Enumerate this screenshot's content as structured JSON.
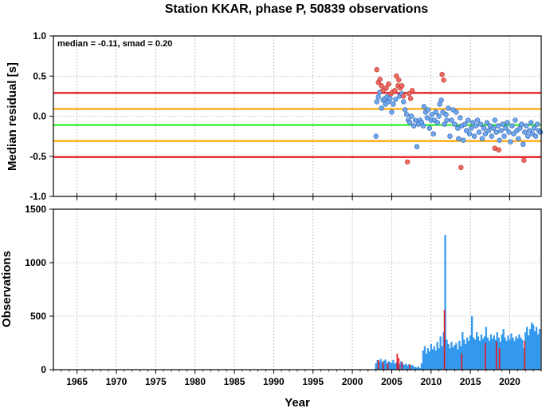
{
  "chart_data": [
    {
      "type": "scatter",
      "title": "Station KKAR, phase P, 50839 observations",
      "ylabel": "Median residual [s]",
      "annotation": "median = -0.11, smad = 0.20",
      "xlim": [
        1962,
        2024
      ],
      "ylim": [
        -1.0,
        1.0
      ],
      "yticks": [
        "-1.0",
        "-0.5",
        "0.0",
        "0.5",
        "1.0"
      ],
      "grid": true,
      "reference_lines": [
        {
          "value": 0.29,
          "color": "#e8141e"
        },
        {
          "value": 0.09,
          "color": "#ffa500"
        },
        {
          "value": -0.11,
          "color": "#22ee22"
        },
        {
          "value": -0.31,
          "color": "#ffa500"
        },
        {
          "value": -0.51,
          "color": "#e8141e"
        }
      ],
      "series": [
        {
          "color": "#6fa8f0",
          "points": [
            [
              2003.0,
              -0.25
            ],
            [
              2003.1,
              0.18
            ],
            [
              2003.3,
              0.24
            ],
            [
              2003.5,
              0.3
            ],
            [
              2003.7,
              0.1
            ],
            [
              2003.9,
              0.2
            ],
            [
              2004.1,
              0.22
            ],
            [
              2004.2,
              0.15
            ],
            [
              2004.4,
              0.24
            ],
            [
              2004.6,
              0.18
            ],
            [
              2004.8,
              0.22
            ],
            [
              2005.0,
              0.05
            ],
            [
              2005.2,
              0.15
            ],
            [
              2005.5,
              0.21
            ],
            [
              2006.0,
              0.25
            ],
            [
              2006.3,
              0.28
            ],
            [
              2006.5,
              0.18
            ],
            [
              2006.7,
              0.08
            ],
            [
              2006.9,
              0.02
            ],
            [
              2007.1,
              -0.05
            ],
            [
              2007.3,
              -0.08
            ],
            [
              2007.5,
              0.0
            ],
            [
              2007.8,
              -0.12
            ],
            [
              2008.0,
              -0.05
            ],
            [
              2008.2,
              -0.38
            ],
            [
              2008.4,
              -0.1
            ],
            [
              2008.6,
              -0.05
            ],
            [
              2008.8,
              -0.08
            ],
            [
              2009.0,
              -0.12
            ],
            [
              2009.1,
              0.12
            ],
            [
              2009.3,
              0.05
            ],
            [
              2009.5,
              -0.02
            ],
            [
              2009.6,
              0.08
            ],
            [
              2009.8,
              -0.15
            ],
            [
              2010.0,
              -0.05
            ],
            [
              2010.1,
              0.02
            ],
            [
              2010.3,
              -0.22
            ],
            [
              2010.4,
              -0.05
            ],
            [
              2010.6,
              0.05
            ],
            [
              2010.8,
              -0.08
            ],
            [
              2011.0,
              0.0
            ],
            [
              2011.1,
              0.15
            ],
            [
              2011.3,
              0.2
            ],
            [
              2011.5,
              0.05
            ],
            [
              2011.7,
              -0.1
            ],
            [
              2011.9,
              0.02
            ],
            [
              2012.0,
              -0.05
            ],
            [
              2012.2,
              0.1
            ],
            [
              2012.4,
              -0.25
            ],
            [
              2012.6,
              -0.05
            ],
            [
              2012.8,
              0.08
            ],
            [
              2013.0,
              -0.1
            ],
            [
              2013.2,
              0.05
            ],
            [
              2013.4,
              -0.15
            ],
            [
              2013.5,
              -0.28
            ],
            [
              2013.7,
              -0.02
            ],
            [
              2013.9,
              -0.12
            ],
            [
              2014.1,
              -0.3
            ],
            [
              2014.3,
              -0.1
            ],
            [
              2014.5,
              -0.18
            ],
            [
              2014.7,
              -0.05
            ],
            [
              2014.9,
              -0.22
            ],
            [
              2015.1,
              -0.15
            ],
            [
              2015.3,
              -0.08
            ],
            [
              2015.5,
              -0.25
            ],
            [
              2015.7,
              -0.12
            ],
            [
              2015.9,
              -0.05
            ],
            [
              2016.1,
              -0.2
            ],
            [
              2016.3,
              -0.1
            ],
            [
              2016.5,
              -0.28
            ],
            [
              2016.7,
              -0.15
            ],
            [
              2016.9,
              -0.22
            ],
            [
              2017.1,
              -0.08
            ],
            [
              2017.3,
              -0.18
            ],
            [
              2017.5,
              -0.12
            ],
            [
              2017.7,
              -0.25
            ],
            [
              2017.9,
              -0.15
            ],
            [
              2018.1,
              -0.05
            ],
            [
              2018.3,
              -0.2
            ],
            [
              2018.5,
              -0.12
            ],
            [
              2018.7,
              -0.3
            ],
            [
              2018.9,
              -0.18
            ],
            [
              2019.1,
              -0.1
            ],
            [
              2019.3,
              -0.25
            ],
            [
              2019.5,
              -0.15
            ],
            [
              2019.7,
              -0.08
            ],
            [
              2019.9,
              -0.2
            ],
            [
              2020.1,
              -0.32
            ],
            [
              2020.3,
              -0.12
            ],
            [
              2020.5,
              -0.22
            ],
            [
              2020.7,
              -0.05
            ],
            [
              2020.9,
              -0.18
            ],
            [
              2021.1,
              -0.28
            ],
            [
              2021.3,
              -0.15
            ],
            [
              2021.5,
              -0.1
            ],
            [
              2021.7,
              -0.35
            ],
            [
              2021.9,
              -0.2
            ],
            [
              2022.1,
              -0.12
            ],
            [
              2022.3,
              -0.25
            ],
            [
              2022.5,
              -0.18
            ],
            [
              2022.7,
              -0.08
            ],
            [
              2022.9,
              -0.22
            ],
            [
              2023.1,
              -0.15
            ],
            [
              2023.3,
              -0.25
            ],
            [
              2023.5,
              -0.1
            ],
            [
              2023.7,
              -0.18
            ],
            [
              2023.9,
              -0.2
            ]
          ]
        },
        {
          "color": "#f06a60",
          "points": [
            [
              2003.1,
              0.58
            ],
            [
              2003.3,
              0.42
            ],
            [
              2003.5,
              0.46
            ],
            [
              2003.7,
              0.38
            ],
            [
              2003.9,
              0.32
            ],
            [
              2004.3,
              0.35
            ],
            [
              2004.6,
              0.4
            ],
            [
              2004.9,
              0.28
            ],
            [
              2005.1,
              0.3
            ],
            [
              2005.4,
              0.32
            ],
            [
              2005.6,
              0.5
            ],
            [
              2005.8,
              0.38
            ],
            [
              2005.9,
              0.45
            ],
            [
              2006.1,
              0.35
            ],
            [
              2006.3,
              0.38
            ],
            [
              2006.5,
              0.25
            ],
            [
              2007.0,
              -0.57
            ],
            [
              2007.2,
              0.28
            ],
            [
              2007.4,
              0.22
            ],
            [
              2007.6,
              0.32
            ],
            [
              2011.4,
              0.52
            ],
            [
              2011.6,
              0.45
            ],
            [
              2013.8,
              -0.64
            ],
            [
              2018.1,
              -0.4
            ],
            [
              2018.6,
              -0.42
            ],
            [
              2021.8,
              -0.55
            ]
          ]
        }
      ]
    },
    {
      "type": "bar",
      "xlabel": "Year",
      "ylabel": "Observations",
      "xlim": [
        1962,
        2024
      ],
      "ylim": [
        0,
        1500
      ],
      "xticks": [
        "1965",
        "1970",
        "1975",
        "1980",
        "1985",
        "1990",
        "1995",
        "2000",
        "2005",
        "2010",
        "2015",
        "2020"
      ],
      "yticks": [
        "0",
        "500",
        "1000",
        "1500"
      ],
      "grid": true,
      "series": [
        {
          "color": "#3399ee",
          "bars": [
            [
              2003.0,
              60
            ],
            [
              2003.2,
              90
            ],
            [
              2003.4,
              75
            ],
            [
              2003.6,
              100
            ],
            [
              2003.8,
              70
            ],
            [
              2004.0,
              85
            ],
            [
              2004.2,
              95
            ],
            [
              2004.4,
              60
            ],
            [
              2004.6,
              80
            ],
            [
              2004.8,
              70
            ],
            [
              2005.0,
              65
            ],
            [
              2005.2,
              90
            ],
            [
              2005.4,
              55
            ],
            [
              2005.6,
              70
            ],
            [
              2005.8,
              60
            ],
            [
              2006.0,
              50
            ],
            [
              2006.2,
              80
            ],
            [
              2006.4,
              60
            ],
            [
              2006.6,
              45
            ],
            [
              2006.8,
              55
            ],
            [
              2007.0,
              40
            ],
            [
              2007.2,
              50
            ],
            [
              2007.4,
              35
            ],
            [
              2007.6,
              45
            ],
            [
              2007.8,
              30
            ],
            [
              2008.0,
              25
            ],
            [
              2008.2,
              20
            ],
            [
              2008.4,
              30
            ],
            [
              2008.6,
              15
            ],
            [
              2008.8,
              60
            ],
            [
              2009.0,
              180
            ],
            [
              2009.2,
              220
            ],
            [
              2009.4,
              150
            ],
            [
              2009.6,
              200
            ],
            [
              2009.8,
              170
            ],
            [
              2010.0,
              240
            ],
            [
              2010.2,
              190
            ],
            [
              2010.4,
              220
            ],
            [
              2010.6,
              180
            ],
            [
              2010.8,
              260
            ],
            [
              2011.0,
              200
            ],
            [
              2011.2,
              310
            ],
            [
              2011.4,
              220
            ],
            [
              2011.6,
              350
            ],
            [
              2011.8,
              1260
            ],
            [
              2012.0,
              280
            ],
            [
              2012.2,
              240
            ],
            [
              2012.4,
              200
            ],
            [
              2012.6,
              260
            ],
            [
              2012.8,
              210
            ],
            [
              2013.0,
              230
            ],
            [
              2013.2,
              250
            ],
            [
              2013.4,
              190
            ],
            [
              2013.6,
              270
            ],
            [
              2013.8,
              220
            ],
            [
              2014.0,
              350
            ],
            [
              2014.2,
              280
            ],
            [
              2014.4,
              240
            ],
            [
              2014.6,
              300
            ],
            [
              2014.8,
              270
            ],
            [
              2015.0,
              320
            ],
            [
              2015.2,
              500
            ],
            [
              2015.4,
              300
            ],
            [
              2015.6,
              280
            ],
            [
              2015.8,
              350
            ],
            [
              2016.0,
              310
            ],
            [
              2016.2,
              270
            ],
            [
              2016.4,
              330
            ],
            [
              2016.6,
              290
            ],
            [
              2016.8,
              310
            ],
            [
              2017.0,
              400
            ],
            [
              2017.2,
              300
            ],
            [
              2017.4,
              270
            ],
            [
              2017.6,
              330
            ],
            [
              2017.8,
              290
            ],
            [
              2018.0,
              320
            ],
            [
              2018.2,
              280
            ],
            [
              2018.4,
              350
            ],
            [
              2018.6,
              300
            ],
            [
              2018.8,
              260
            ],
            [
              2019.0,
              330
            ],
            [
              2019.2,
              380
            ],
            [
              2019.4,
              300
            ],
            [
              2019.6,
              270
            ],
            [
              2019.8,
              320
            ],
            [
              2020.0,
              280
            ],
            [
              2020.2,
              340
            ],
            [
              2020.4,
              300
            ],
            [
              2020.6,
              270
            ],
            [
              2020.8,
              310
            ],
            [
              2021.0,
              290
            ],
            [
              2021.2,
              330
            ],
            [
              2021.4,
              300
            ],
            [
              2021.6,
              280
            ],
            [
              2021.8,
              200
            ],
            [
              2022.0,
              350
            ],
            [
              2022.2,
              400
            ],
            [
              2022.4,
              320
            ],
            [
              2022.6,
              380
            ],
            [
              2022.8,
              440
            ],
            [
              2023.0,
              420
            ],
            [
              2023.2,
              360
            ],
            [
              2023.4,
              400
            ],
            [
              2023.6,
              330
            ],
            [
              2023.8,
              380
            ]
          ]
        },
        {
          "color": "#e8141e",
          "bars": [
            [
              2003.3,
              90
            ],
            [
              2003.9,
              70
            ],
            [
              2004.5,
              60
            ],
            [
              2005.7,
              150
            ],
            [
              2005.9,
              110
            ],
            [
              2006.3,
              70
            ],
            [
              2007.3,
              50
            ],
            [
              2011.7,
              560
            ],
            [
              2013.9,
              150
            ],
            [
              2016.9,
              250
            ],
            [
              2018.3,
              260
            ],
            [
              2018.7,
              200
            ],
            [
              2021.9,
              270
            ]
          ]
        }
      ]
    }
  ]
}
